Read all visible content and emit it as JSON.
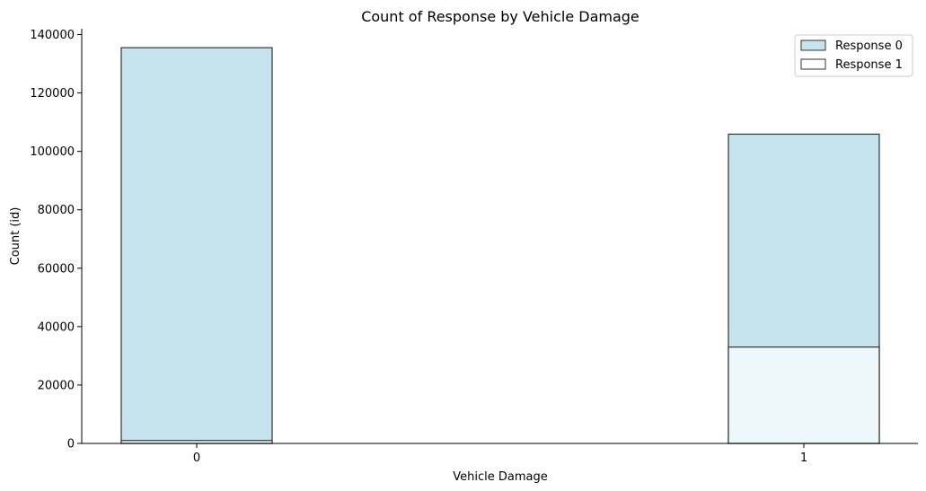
{
  "chart_data": {
    "type": "bar",
    "stacked": "overlaid",
    "title": "Count of Response by Vehicle Damage",
    "xlabel": "Vehicle Damage",
    "ylabel": "Count (id)",
    "categories": [
      "0",
      "1"
    ],
    "ylim": [
      0,
      142000
    ],
    "yticks": [
      0,
      20000,
      40000,
      60000,
      80000,
      100000,
      120000,
      140000
    ],
    "series": [
      {
        "name": "Response 0",
        "values": [
          135500,
          105900
        ],
        "color": "#add8e6"
      },
      {
        "name": "Response 1",
        "values": [
          1000,
          33000
        ],
        "color": "#ffffff"
      }
    ],
    "legend": "top-right",
    "grid": false
  }
}
